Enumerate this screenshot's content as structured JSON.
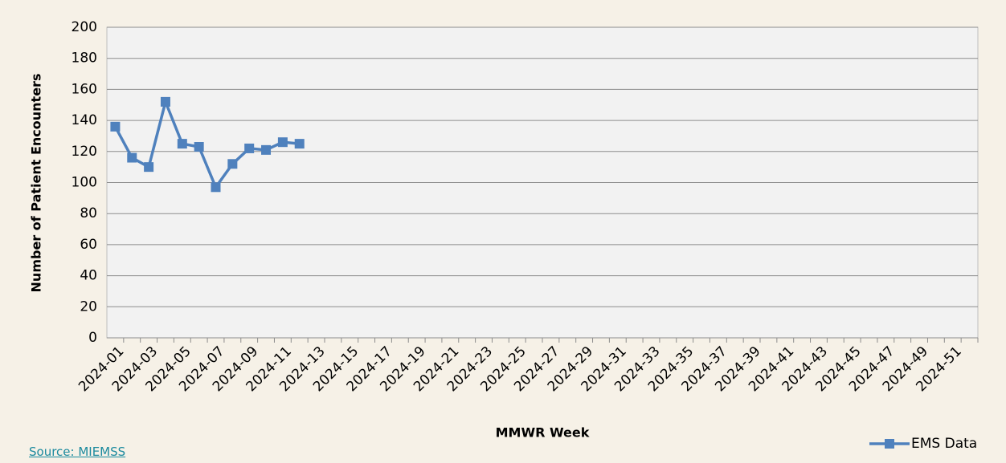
{
  "chart_data": {
    "type": "line",
    "categories": [
      "2024-01",
      null,
      "2024-03",
      null,
      "2024-05",
      null,
      "2024-07",
      null,
      "2024-09",
      null,
      "2024-11",
      null,
      "2024-13",
      null,
      "2024-15",
      null,
      "2024-17",
      null,
      "2024-19",
      null,
      "2024-21",
      null,
      "2024-23",
      null,
      "2024-25",
      null,
      "2024-27",
      null,
      "2024-29",
      null,
      "2024-31",
      null,
      "2024-33",
      null,
      "2024-35",
      null,
      "2024-37",
      null,
      "2024-39",
      null,
      "2024-41",
      null,
      "2024-43",
      null,
      "2024-45",
      null,
      "2024-47",
      null,
      "2024-49",
      null,
      "2024-51",
      null
    ],
    "series": [
      {
        "name": "EMS Data",
        "color": "#4f81bd",
        "values": [
          136,
          116,
          110,
          152,
          125,
          123,
          97,
          112,
          122,
          121,
          126,
          125,
          null,
          null,
          null,
          null,
          null,
          null,
          null,
          null,
          null,
          null,
          null,
          null,
          null,
          null,
          null,
          null,
          null,
          null,
          null,
          null,
          null,
          null,
          null,
          null,
          null,
          null,
          null,
          null,
          null,
          null,
          null,
          null,
          null,
          null,
          null,
          null,
          null,
          null,
          null,
          null
        ]
      }
    ],
    "ylim": [
      0,
      200
    ],
    "yticks": [
      0,
      20,
      40,
      60,
      80,
      100,
      120,
      140,
      160,
      180,
      200
    ],
    "grid": true,
    "x_label": "MMWR Week",
    "y_label": "Number of Patient Encounters",
    "legend": "bottom-right"
  },
  "source": "Source: MIEMSS"
}
